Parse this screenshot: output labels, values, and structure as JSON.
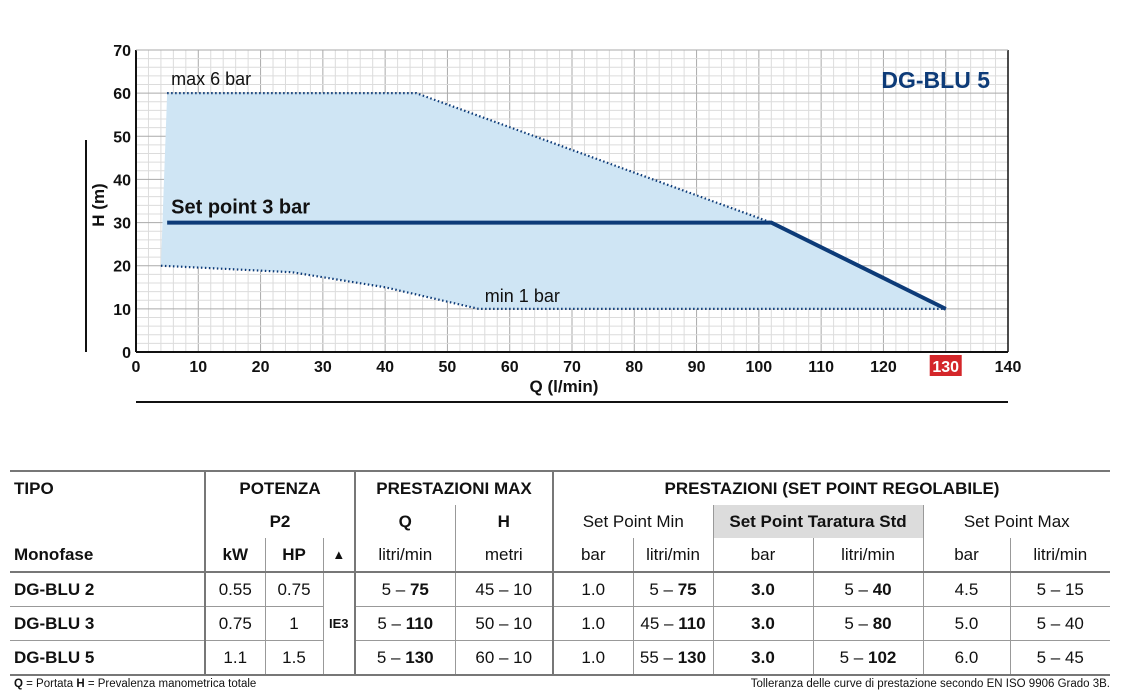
{
  "chart_data": {
    "type": "area",
    "title": "DG-BLU 5",
    "xlabel": "Q (l/min)",
    "ylabel": "H (m)",
    "xlim": [
      0,
      140
    ],
    "ylim": [
      0,
      70
    ],
    "x_ticks": [
      "0",
      "10",
      "20",
      "30",
      "40",
      "50",
      "60",
      "70",
      "80",
      "90",
      "100",
      "110",
      "120",
      "130",
      "140"
    ],
    "y_ticks": [
      "0",
      "10",
      "20",
      "30",
      "40",
      "50",
      "60",
      "70"
    ],
    "highlight_tick": "130",
    "grid": true,
    "series": [
      {
        "name": "max 6 bar",
        "style": "dotted",
        "x": [
          5,
          45,
          102,
          130
        ],
        "y": [
          60,
          60,
          30,
          10
        ]
      },
      {
        "name": "min 1 bar",
        "style": "dotted",
        "x": [
          4,
          25,
          40,
          55,
          130
        ],
        "y": [
          20,
          18.5,
          15,
          10,
          10
        ]
      },
      {
        "name": "Set point 3 bar",
        "style": "solid",
        "x": [
          5,
          102,
          130
        ],
        "y": [
          30,
          30,
          10
        ]
      }
    ],
    "colors": {
      "fill": "#cfe5f4",
      "curve": "#0d3b78",
      "highlight": "#d4262a"
    }
  },
  "table": {
    "h1": {
      "tipo": "TIPO",
      "potenza": "POTENZA",
      "prest_max": "PRESTAZIONI MAX",
      "prest_sp": "PRESTAZIONI (SET POINT REGOLABILE)"
    },
    "h2": {
      "p2": "P2",
      "q": "Q",
      "h": "H",
      "sp_min": "Set Point Min",
      "sp_std": "Set Point Taratura Std",
      "sp_max": "Set Point Max"
    },
    "h3": {
      "monofase": "Monofase",
      "kw": "kW",
      "hp": "HP",
      "tri": "▲",
      "q_unit": "litri/min",
      "h_unit": "metri",
      "bar1": "bar",
      "lmin1": "litri/min",
      "bar2": "bar",
      "lmin2": "litri/min",
      "bar3": "bar",
      "lmin3": "litri/min"
    },
    "ie": "IE3",
    "rows": [
      {
        "name": "DG-BLU 2",
        "kw": "0.55",
        "hp": "0.75",
        "qa": "5 – ",
        "qb": "75",
        "h": "45 – 10",
        "smin_bar": "1.0",
        "smin_qa": "5 – ",
        "smin_qb": "75",
        "std_bar": "3.0",
        "std_qa": "5 – ",
        "std_qb": "40",
        "smax_bar": "4.5",
        "smax_q": "5 – 15"
      },
      {
        "name": "DG-BLU 3",
        "kw": "0.75",
        "hp": "1",
        "qa": "5 – ",
        "qb": "110",
        "h": "50 – 10",
        "smin_bar": "1.0",
        "smin_qa": "45 – ",
        "smin_qb": "110",
        "std_bar": "3.0",
        "std_qa": "5 – ",
        "std_qb": "80",
        "smax_bar": "5.0",
        "smax_q": "5 – 40"
      },
      {
        "name": "DG-BLU 5",
        "kw": "1.1",
        "hp": "1.5",
        "qa": "5 – ",
        "qb": "130",
        "h": "60 – 10",
        "smin_bar": "1.0",
        "smin_qa": "55 – ",
        "smin_qb": "130",
        "std_bar": "3.0",
        "std_qa": "5 – ",
        "std_qb": "102",
        "smax_bar": "6.0",
        "smax_q": "5 – 45"
      }
    ]
  },
  "footer": {
    "q_abbr": "Q",
    "q_text": " = Portata  ",
    "h_abbr": "H",
    "h_text": " = Prevalenza manometrica totale",
    "right": "Tolleranza delle curve di prestazione secondo EN ISO 9906 Grado 3B."
  }
}
